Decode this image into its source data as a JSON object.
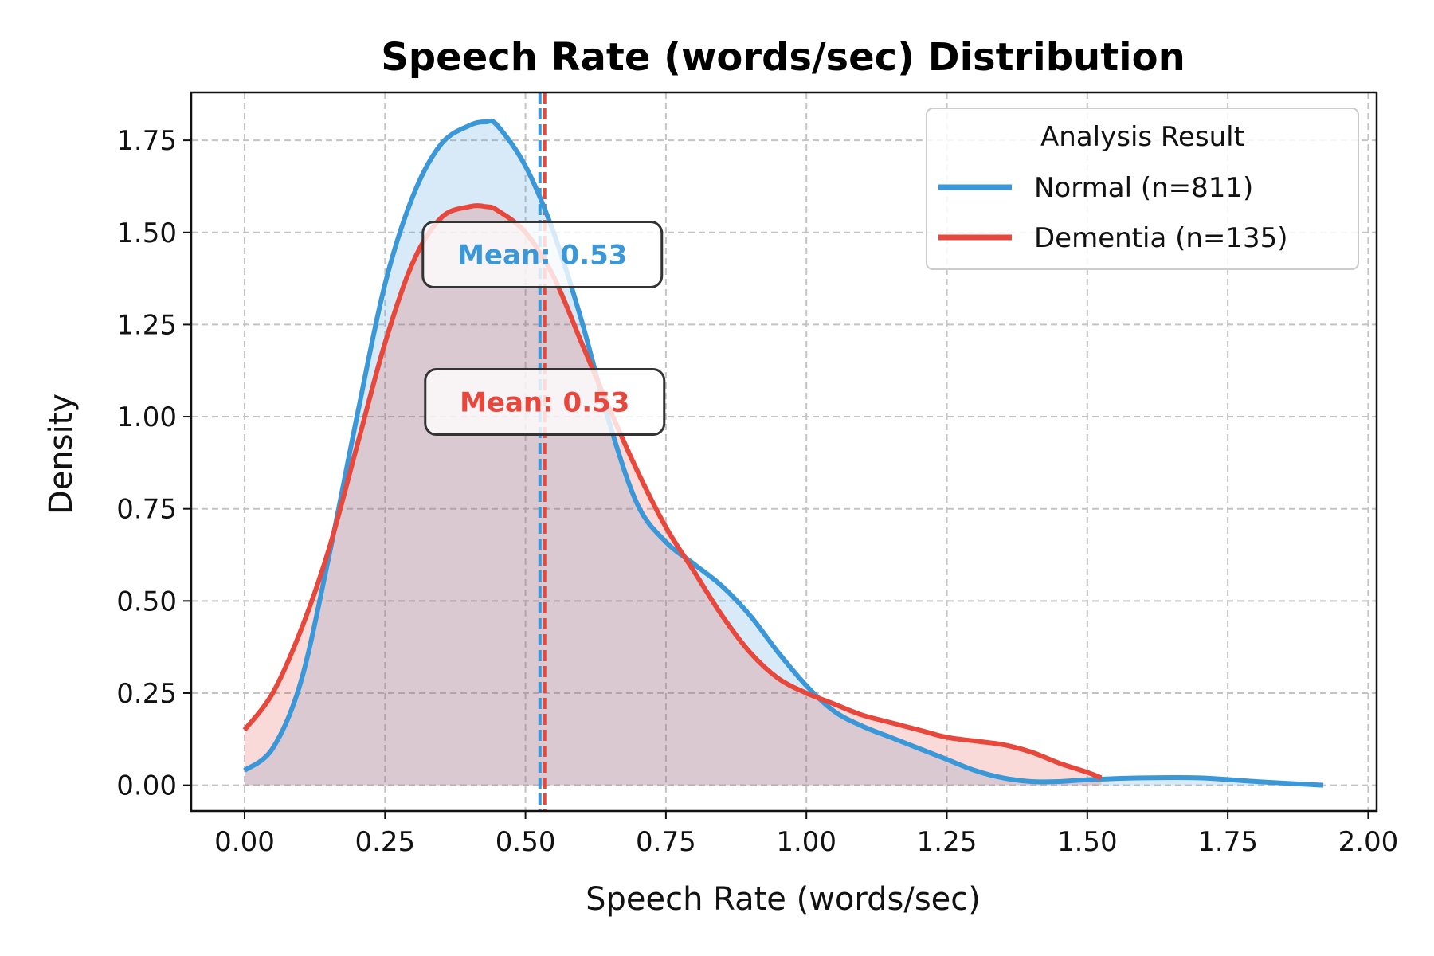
{
  "chart_data": {
    "type": "area",
    "title": "Speech Rate (words/sec) Distribution",
    "xlabel": "Speech Rate (words/sec)",
    "ylabel": "Density",
    "xlim": [
      -0.095,
      2.015
    ],
    "ylim": [
      -0.07,
      1.88
    ],
    "xticks": [
      "0.00",
      "0.25",
      "0.50",
      "0.75",
      "1.00",
      "1.25",
      "1.50",
      "1.75",
      "2.00"
    ],
    "yticks": [
      "0.00",
      "0.25",
      "0.50",
      "0.75",
      "1.00",
      "1.25",
      "1.50",
      "1.75"
    ],
    "grid": true,
    "legend": {
      "title": "Analysis Result",
      "placement": "top-right"
    },
    "series": [
      {
        "name": "Normal (n=811)",
        "color": "#3a98d8",
        "mean": 0.53,
        "mean_label": "Mean: 0.53",
        "x": [
          0.0,
          0.05,
          0.1,
          0.15,
          0.2,
          0.25,
          0.3,
          0.35,
          0.4,
          0.43,
          0.45,
          0.5,
          0.55,
          0.6,
          0.65,
          0.7,
          0.75,
          0.8,
          0.85,
          0.9,
          0.95,
          1.0,
          1.05,
          1.1,
          1.15,
          1.2,
          1.25,
          1.3,
          1.35,
          1.4,
          1.45,
          1.5,
          1.6,
          1.7,
          1.8,
          1.92
        ],
        "y": [
          0.04,
          0.1,
          0.28,
          0.62,
          1.0,
          1.36,
          1.6,
          1.74,
          1.79,
          1.8,
          1.79,
          1.68,
          1.5,
          1.26,
          0.98,
          0.76,
          0.66,
          0.6,
          0.54,
          0.46,
          0.36,
          0.27,
          0.2,
          0.16,
          0.13,
          0.1,
          0.07,
          0.04,
          0.02,
          0.01,
          0.01,
          0.015,
          0.02,
          0.02,
          0.01,
          0.0
        ]
      },
      {
        "name": "Dementia (n=135)",
        "color": "#e8473c",
        "mean": 0.53,
        "mean_label": "Mean: 0.53",
        "x": [
          0.0,
          0.05,
          0.1,
          0.15,
          0.2,
          0.25,
          0.3,
          0.35,
          0.4,
          0.43,
          0.45,
          0.5,
          0.55,
          0.6,
          0.65,
          0.7,
          0.75,
          0.8,
          0.85,
          0.9,
          0.95,
          1.0,
          1.05,
          1.1,
          1.15,
          1.2,
          1.25,
          1.3,
          1.35,
          1.4,
          1.45,
          1.5,
          1.525
        ],
        "y": [
          0.15,
          0.25,
          0.42,
          0.64,
          0.92,
          1.2,
          1.42,
          1.54,
          1.57,
          1.57,
          1.56,
          1.5,
          1.38,
          1.2,
          1.02,
          0.85,
          0.7,
          0.58,
          0.46,
          0.36,
          0.29,
          0.25,
          0.22,
          0.19,
          0.17,
          0.15,
          0.13,
          0.12,
          0.11,
          0.09,
          0.06,
          0.035,
          0.02
        ]
      }
    ]
  }
}
